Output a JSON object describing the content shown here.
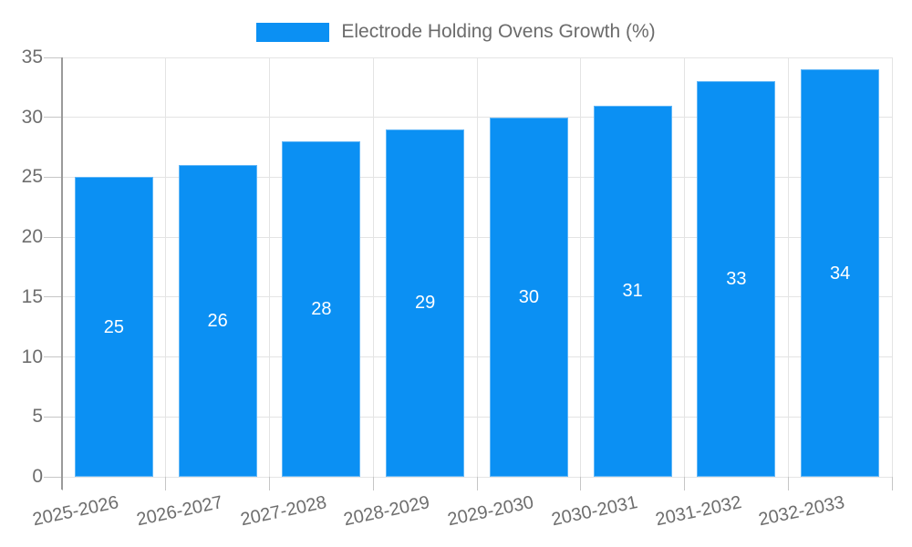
{
  "chart_data": {
    "type": "bar",
    "title": "Electrode Holding Ovens Growth (%)",
    "legend_entries": [
      "Electrode Holding Ovens Growth (%)"
    ],
    "legend_position": "top",
    "categories": [
      "2025-2026",
      "2026-2027",
      "2027-2028",
      "2028-2029",
      "2029-2030",
      "2030-2031",
      "2031-2032",
      "2032-2033"
    ],
    "values": [
      25,
      26,
      28,
      29,
      30,
      31,
      33,
      34
    ],
    "value_labels": [
      "25",
      "26",
      "28",
      "29",
      "30",
      "31",
      "33",
      "34"
    ],
    "xlabel": "",
    "ylabel": "",
    "ylim": [
      0,
      35
    ],
    "ytick_step": 5,
    "yticks": [
      0,
      5,
      10,
      15,
      20,
      25,
      30,
      35
    ],
    "grid": true,
    "colors": {
      "bar": "#0b90f3",
      "grid": "#e4e4e4",
      "axis": "#9a9a9a",
      "tick_mark": "#c6c6c6",
      "tick_text": "#6e6e6e",
      "legend_text": "#6b6b6b",
      "value_text": "#ffffff",
      "background": "#ffffff"
    }
  }
}
